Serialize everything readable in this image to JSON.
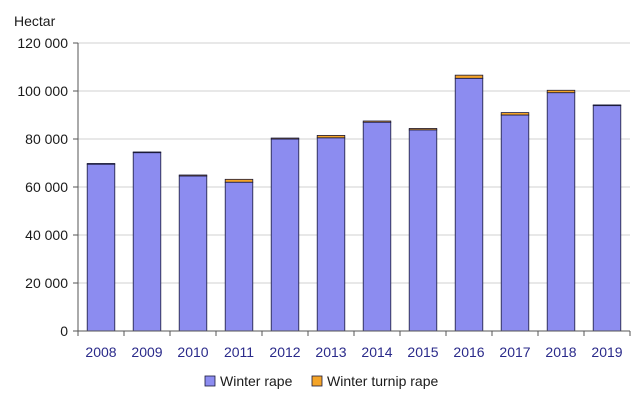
{
  "chart_data": {
    "type": "bar",
    "stacked": true,
    "title": "",
    "ylabel": "Hectar",
    "xlabel": "",
    "ylim": [
      0,
      120000
    ],
    "yticks": [
      0,
      20000,
      40000,
      60000,
      80000,
      100000,
      120000
    ],
    "ytick_labels": [
      "0",
      "20 000",
      "40 000",
      "60 000",
      "80 000",
      "100 000",
      "120 000"
    ],
    "grid": true,
    "legend_position": "bottom",
    "categories": [
      "2008",
      "2009",
      "2010",
      "2011",
      "2012",
      "2013",
      "2014",
      "2015",
      "2016",
      "2017",
      "2018",
      "2019"
    ],
    "series": [
      {
        "name": "Winter rape",
        "color": "#8c8cf0",
        "values": [
          69500,
          74300,
          64600,
          62000,
          80000,
          80500,
          87000,
          83800,
          105300,
          90000,
          99300,
          93900
        ]
      },
      {
        "name": "Winter turnip rape",
        "color": "#f4a428",
        "values": [
          300,
          300,
          400,
          1200,
          400,
          1000,
          500,
          600,
          1300,
          1000,
          1000,
          300
        ]
      }
    ]
  }
}
